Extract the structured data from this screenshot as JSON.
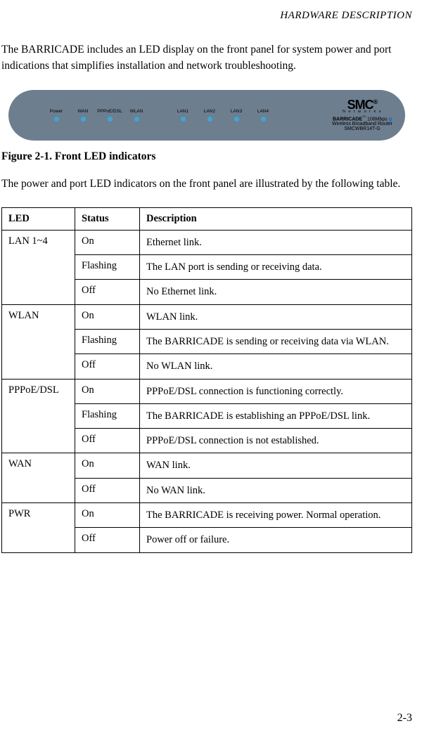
{
  "header": "HARDWARE DESCRIPTION",
  "intro_para": "The BARRICADE includes an LED display on the front panel for system power and port indications that simplifies installation and network troubleshooting.",
  "device": {
    "leds_group1": [
      {
        "label": "Power"
      },
      {
        "label": "WAN"
      },
      {
        "label": "PPPoE/DSL"
      },
      {
        "label": "WLAN"
      }
    ],
    "leds_group2": [
      {
        "label": "LAN1"
      },
      {
        "label": "LAN2"
      },
      {
        "label": "LAN3"
      },
      {
        "label": "LAN4"
      }
    ],
    "brand": {
      "logo": "SMC",
      "networks": "N e t w o r k s",
      "barricade": "BARRICADE",
      "speed": "108Mbps",
      "desc": "Wireless Broadband Router",
      "model": "SMCWBR14T-G"
    }
  },
  "figure_caption": "Figure 2-1.  Front LED indicators",
  "second_para": "The power and port LED indicators on the front panel are illustrated by the following table.",
  "table": {
    "headers": [
      "LED",
      "Status",
      "Description"
    ],
    "groups": [
      {
        "led": "LAN 1~4",
        "rows": [
          {
            "status": "On",
            "desc": "Ethernet link."
          },
          {
            "status": "Flashing",
            "desc": "The LAN port is sending or receiving data."
          },
          {
            "status": "Off",
            "desc": "No Ethernet link."
          }
        ]
      },
      {
        "led": "WLAN",
        "rows": [
          {
            "status": "On",
            "desc": "WLAN link."
          },
          {
            "status": "Flashing",
            "desc": "The BARRICADE is sending or receiving data via WLAN."
          },
          {
            "status": "Off",
            "desc": "No WLAN link."
          }
        ]
      },
      {
        "led": "PPPoE/DSL",
        "rows": [
          {
            "status": "On",
            "desc": "PPPoE/DSL connection is functioning correctly."
          },
          {
            "status": "Flashing",
            "desc": "The BARRICADE is establishing an PPPoE/DSL link."
          },
          {
            "status": "Off",
            "desc": "PPPoE/DSL connection is not established."
          }
        ]
      },
      {
        "led": "WAN",
        "rows": [
          {
            "status": "On",
            "desc": "WAN link."
          },
          {
            "status": "Off",
            "desc": "No WAN link."
          }
        ]
      },
      {
        "led": "PWR",
        "rows": [
          {
            "status": "On",
            "desc": "The BARRICADE is receiving power. Normal operation."
          },
          {
            "status": "Off",
            "desc": "Power off or failure."
          }
        ]
      }
    ]
  },
  "page_number": "2-3"
}
